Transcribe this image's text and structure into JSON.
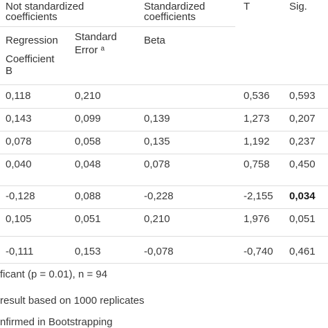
{
  "header": {
    "col_not_std": "Not standardized coefficients",
    "col_not_std_line1": "Not standardized",
    "col_not_std_line2": "coefficients",
    "col_std_line1": "Standardized",
    "col_std_line2": "coefficients",
    "col_t": "T",
    "col_sig": "Sig.",
    "sub_regression_line1": "Regression",
    "sub_regression_line2": "Coefficient",
    "sub_regression_line3": "B",
    "sub_stderr_line1": "Standard",
    "sub_stderr_line2": "Error",
    "sub_stderr_sup": "a",
    "sub_beta": "Beta"
  },
  "rows": [
    {
      "b": "0,118",
      "se": "0,210",
      "beta": "",
      "t": "0,536",
      "sig": "0,593",
      "sig_bold": false
    },
    {
      "b": "0,143",
      "se": "0,099",
      "beta": "0,139",
      "t": "1,273",
      "sig": "0,207",
      "sig_bold": false
    },
    {
      "b": "0,078",
      "se": "0,058",
      "beta": "0,135",
      "t": "1,192",
      "sig": "0,237",
      "sig_bold": false
    },
    {
      "b": "0,040",
      "se": "0,048",
      "beta": "0,078",
      "t": "0,758",
      "sig": "0,450",
      "sig_bold": false
    },
    {
      "b": "-0,128",
      "se": "0,088",
      "beta": "-0,228",
      "t": "-2,155",
      "sig": "0,034",
      "sig_bold": true
    },
    {
      "b": "0,105",
      "se": "0,051",
      "beta": "0,210",
      "t": "1,976",
      "sig": "0,051",
      "sig_bold": false
    },
    {
      "b": "-0,111",
      "se": "0,153",
      "beta": "-0,078",
      "t": "-0,740",
      "sig": "0,461",
      "sig_bold": false
    }
  ],
  "notes": [
    "ficant (p = 0.01), n = 94",
    "result based on 1000 replicates",
    "nfirmed in Bootstrapping"
  ]
}
